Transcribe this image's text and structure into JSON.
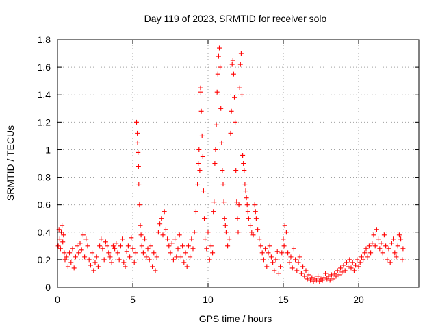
{
  "chart_data": {
    "type": "scatter",
    "title": "Day 119 of 2023, SRMTID for receiver solo",
    "xlabel": "GPS time / hours",
    "ylabel": "SRMTID / TECUs",
    "xlim": [
      0,
      24
    ],
    "ylim": [
      0,
      1.8
    ],
    "x_ticks": [
      "0",
      "5",
      "10",
      "15",
      "20"
    ],
    "y_ticks": [
      "0",
      "0.2",
      "0.4",
      "0.6",
      "0.8",
      "1",
      "1.2",
      "1.4",
      "1.6",
      "1.8"
    ],
    "grid": true,
    "marker": "+",
    "color": "#ff0000",
    "series": [
      {
        "name": "SRMTID",
        "points": [
          [
            0.05,
            0.3
          ],
          [
            0.1,
            0.42
          ],
          [
            0.15,
            0.35
          ],
          [
            0.2,
            0.28
          ],
          [
            0.25,
            0.4
          ],
          [
            0.3,
            0.45
          ],
          [
            0.35,
            0.33
          ],
          [
            0.4,
            0.38
          ],
          [
            0.45,
            0.25
          ],
          [
            0.5,
            0.2
          ],
          [
            0.6,
            0.22
          ],
          [
            0.7,
            0.15
          ],
          [
            0.8,
            0.25
          ],
          [
            0.9,
            0.18
          ],
          [
            1.0,
            0.28
          ],
          [
            1.1,
            0.14
          ],
          [
            1.2,
            0.22
          ],
          [
            1.3,
            0.3
          ],
          [
            1.4,
            0.25
          ],
          [
            1.5,
            0.32
          ],
          [
            1.6,
            0.27
          ],
          [
            1.7,
            0.38
          ],
          [
            1.8,
            0.22
          ],
          [
            1.9,
            0.35
          ],
          [
            2.0,
            0.3
          ],
          [
            2.1,
            0.2
          ],
          [
            2.2,
            0.16
          ],
          [
            2.3,
            0.25
          ],
          [
            2.4,
            0.12
          ],
          [
            2.5,
            0.18
          ],
          [
            2.6,
            0.22
          ],
          [
            2.7,
            0.15
          ],
          [
            2.8,
            0.3
          ],
          [
            2.9,
            0.35
          ],
          [
            3.0,
            0.28
          ],
          [
            3.1,
            0.2
          ],
          [
            3.2,
            0.33
          ],
          [
            3.3,
            0.3
          ],
          [
            3.4,
            0.25
          ],
          [
            3.5,
            0.22
          ],
          [
            3.6,
            0.18
          ],
          [
            3.7,
            0.3
          ],
          [
            3.8,
            0.28
          ],
          [
            3.9,
            0.32
          ],
          [
            4.0,
            0.25
          ],
          [
            4.1,
            0.2
          ],
          [
            4.2,
            0.3
          ],
          [
            4.3,
            0.35
          ],
          [
            4.4,
            0.18
          ],
          [
            4.5,
            0.15
          ],
          [
            4.6,
            0.26
          ],
          [
            4.7,
            0.3
          ],
          [
            4.8,
            0.22
          ],
          [
            4.9,
            0.36
          ],
          [
            5.0,
            0.28
          ],
          [
            5.1,
            0.18
          ],
          [
            5.2,
            0.25
          ],
          [
            5.25,
            1.2
          ],
          [
            5.3,
            1.12
          ],
          [
            5.32,
            1.05
          ],
          [
            5.35,
            0.98
          ],
          [
            5.38,
            0.88
          ],
          [
            5.4,
            0.75
          ],
          [
            5.45,
            0.6
          ],
          [
            5.5,
            0.45
          ],
          [
            5.55,
            0.38
          ],
          [
            5.6,
            0.3
          ],
          [
            5.7,
            0.25
          ],
          [
            5.8,
            0.35
          ],
          [
            5.9,
            0.22
          ],
          [
            6.0,
            0.28
          ],
          [
            6.1,
            0.2
          ],
          [
            6.2,
            0.3
          ],
          [
            6.3,
            0.15
          ],
          [
            6.4,
            0.25
          ],
          [
            6.5,
            0.12
          ],
          [
            6.6,
            0.22
          ],
          [
            6.7,
            0.4
          ],
          [
            6.8,
            0.46
          ],
          [
            6.9,
            0.5
          ],
          [
            7.0,
            0.38
          ],
          [
            7.1,
            0.55
          ],
          [
            7.2,
            0.42
          ],
          [
            7.3,
            0.35
          ],
          [
            7.4,
            0.3
          ],
          [
            7.5,
            0.25
          ],
          [
            7.6,
            0.32
          ],
          [
            7.7,
            0.2
          ],
          [
            7.8,
            0.35
          ],
          [
            7.9,
            0.22
          ],
          [
            8.0,
            0.28
          ],
          [
            8.1,
            0.38
          ],
          [
            8.2,
            0.22
          ],
          [
            8.3,
            0.3
          ],
          [
            8.4,
            0.18
          ],
          [
            8.5,
            0.25
          ],
          [
            8.6,
            0.15
          ],
          [
            8.7,
            0.3
          ],
          [
            8.8,
            0.22
          ],
          [
            8.9,
            0.35
          ],
          [
            9.0,
            0.28
          ],
          [
            9.1,
            0.4
          ],
          [
            9.2,
            0.55
          ],
          [
            9.3,
            0.75
          ],
          [
            9.35,
            0.9
          ],
          [
            9.4,
            1.0
          ],
          [
            9.45,
            0.85
          ],
          [
            9.5,
            1.45
          ],
          [
            9.52,
            1.42
          ],
          [
            9.55,
            1.28
          ],
          [
            9.6,
            1.1
          ],
          [
            9.65,
            0.95
          ],
          [
            9.7,
            0.7
          ],
          [
            9.75,
            0.5
          ],
          [
            9.8,
            0.35
          ],
          [
            9.9,
            0.28
          ],
          [
            10.0,
            0.4
          ],
          [
            10.1,
            0.2
          ],
          [
            10.2,
            0.3
          ],
          [
            10.3,
            0.25
          ],
          [
            10.35,
            0.55
          ],
          [
            10.4,
            0.62
          ],
          [
            10.45,
            0.9
          ],
          [
            10.5,
            1.0
          ],
          [
            10.55,
            1.18
          ],
          [
            10.6,
            1.42
          ],
          [
            10.65,
            1.55
          ],
          [
            10.7,
            1.68
          ],
          [
            10.75,
            1.74
          ],
          [
            10.8,
            1.6
          ],
          [
            10.85,
            1.3
          ],
          [
            10.9,
            1.05
          ],
          [
            10.95,
            0.85
          ],
          [
            11.0,
            0.75
          ],
          [
            11.05,
            0.62
          ],
          [
            11.1,
            0.5
          ],
          [
            11.15,
            0.45
          ],
          [
            11.2,
            0.4
          ],
          [
            11.3,
            0.3
          ],
          [
            11.4,
            0.35
          ],
          [
            11.5,
            1.12
          ],
          [
            11.55,
            1.28
          ],
          [
            11.6,
            1.62
          ],
          [
            11.65,
            1.65
          ],
          [
            11.7,
            1.55
          ],
          [
            11.75,
            1.38
          ],
          [
            11.8,
            1.2
          ],
          [
            11.85,
            0.85
          ],
          [
            11.9,
            0.62
          ],
          [
            11.95,
            0.5
          ],
          [
            12.0,
            0.4
          ],
          [
            12.05,
            0.6
          ],
          [
            12.1,
            1.45
          ],
          [
            12.15,
            1.62
          ],
          [
            12.2,
            1.7
          ],
          [
            12.25,
            1.4
          ],
          [
            12.3,
            0.96
          ],
          [
            12.35,
            0.9
          ],
          [
            12.4,
            0.85
          ],
          [
            12.45,
            0.75
          ],
          [
            12.5,
            0.7
          ],
          [
            12.55,
            0.65
          ],
          [
            12.6,
            0.6
          ],
          [
            12.65,
            0.55
          ],
          [
            12.7,
            0.5
          ],
          [
            12.8,
            0.45
          ],
          [
            12.9,
            0.4
          ],
          [
            13.0,
            0.38
          ],
          [
            13.1,
            0.6
          ],
          [
            13.15,
            0.55
          ],
          [
            13.2,
            0.5
          ],
          [
            13.3,
            0.42
          ],
          [
            13.4,
            0.35
          ],
          [
            13.5,
            0.3
          ],
          [
            13.6,
            0.25
          ],
          [
            13.7,
            0.2
          ],
          [
            13.8,
            0.28
          ],
          [
            13.9,
            0.15
          ],
          [
            14.0,
            0.25
          ],
          [
            14.1,
            0.3
          ],
          [
            14.2,
            0.22
          ],
          [
            14.3,
            0.18
          ],
          [
            14.4,
            0.12
          ],
          [
            14.5,
            0.2
          ],
          [
            14.6,
            0.26
          ],
          [
            14.7,
            0.1
          ],
          [
            14.8,
            0.15
          ],
          [
            14.9,
            0.25
          ],
          [
            15.0,
            0.35
          ],
          [
            15.05,
            0.3
          ],
          [
            15.1,
            0.45
          ],
          [
            15.2,
            0.4
          ],
          [
            15.3,
            0.25
          ],
          [
            15.4,
            0.18
          ],
          [
            15.5,
            0.22
          ],
          [
            15.6,
            0.14
          ],
          [
            15.7,
            0.28
          ],
          [
            15.8,
            0.2
          ],
          [
            15.9,
            0.12
          ],
          [
            16.0,
            0.18
          ],
          [
            16.1,
            0.22
          ],
          [
            16.2,
            0.1
          ],
          [
            16.3,
            0.15
          ],
          [
            16.4,
            0.08
          ],
          [
            16.5,
            0.12
          ],
          [
            16.6,
            0.06
          ],
          [
            16.7,
            0.09
          ],
          [
            16.8,
            0.05
          ],
          [
            16.9,
            0.07
          ],
          [
            17.0,
            0.04
          ],
          [
            17.1,
            0.06
          ],
          [
            17.2,
            0.05
          ],
          [
            17.3,
            0.08
          ],
          [
            17.4,
            0.04
          ],
          [
            17.5,
            0.06
          ],
          [
            17.6,
            0.05
          ],
          [
            17.7,
            0.07
          ],
          [
            17.8,
            0.1
          ],
          [
            17.9,
            0.06
          ],
          [
            18.0,
            0.08
          ],
          [
            18.1,
            0.05
          ],
          [
            18.2,
            0.09
          ],
          [
            18.3,
            0.06
          ],
          [
            18.4,
            0.1
          ],
          [
            18.5,
            0.08
          ],
          [
            18.6,
            0.12
          ],
          [
            18.7,
            0.09
          ],
          [
            18.8,
            0.14
          ],
          [
            18.9,
            0.11
          ],
          [
            19.0,
            0.16
          ],
          [
            19.1,
            0.12
          ],
          [
            19.2,
            0.18
          ],
          [
            19.3,
            0.15
          ],
          [
            19.4,
            0.2
          ],
          [
            19.5,
            0.14
          ],
          [
            19.6,
            0.18
          ],
          [
            19.7,
            0.12
          ],
          [
            19.8,
            0.16
          ],
          [
            19.9,
            0.2
          ],
          [
            20.0,
            0.15
          ],
          [
            20.1,
            0.18
          ],
          [
            20.2,
            0.22
          ],
          [
            20.3,
            0.2
          ],
          [
            20.4,
            0.25
          ],
          [
            20.5,
            0.28
          ],
          [
            20.6,
            0.22
          ],
          [
            20.7,
            0.3
          ],
          [
            20.8,
            0.25
          ],
          [
            20.9,
            0.32
          ],
          [
            21.0,
            0.38
          ],
          [
            21.1,
            0.3
          ],
          [
            21.2,
            0.42
          ],
          [
            21.3,
            0.35
          ],
          [
            21.4,
            0.28
          ],
          [
            21.5,
            0.32
          ],
          [
            21.6,
            0.25
          ],
          [
            21.7,
            0.38
          ],
          [
            21.8,
            0.3
          ],
          [
            21.9,
            0.2
          ],
          [
            22.0,
            0.28
          ],
          [
            22.1,
            0.18
          ],
          [
            22.2,
            0.32
          ],
          [
            22.3,
            0.35
          ],
          [
            22.4,
            0.25
          ],
          [
            22.5,
            0.22
          ],
          [
            22.6,
            0.3
          ],
          [
            22.7,
            0.38
          ],
          [
            22.8,
            0.35
          ],
          [
            22.9,
            0.2
          ],
          [
            22.95,
            0.28
          ]
        ]
      }
    ]
  }
}
